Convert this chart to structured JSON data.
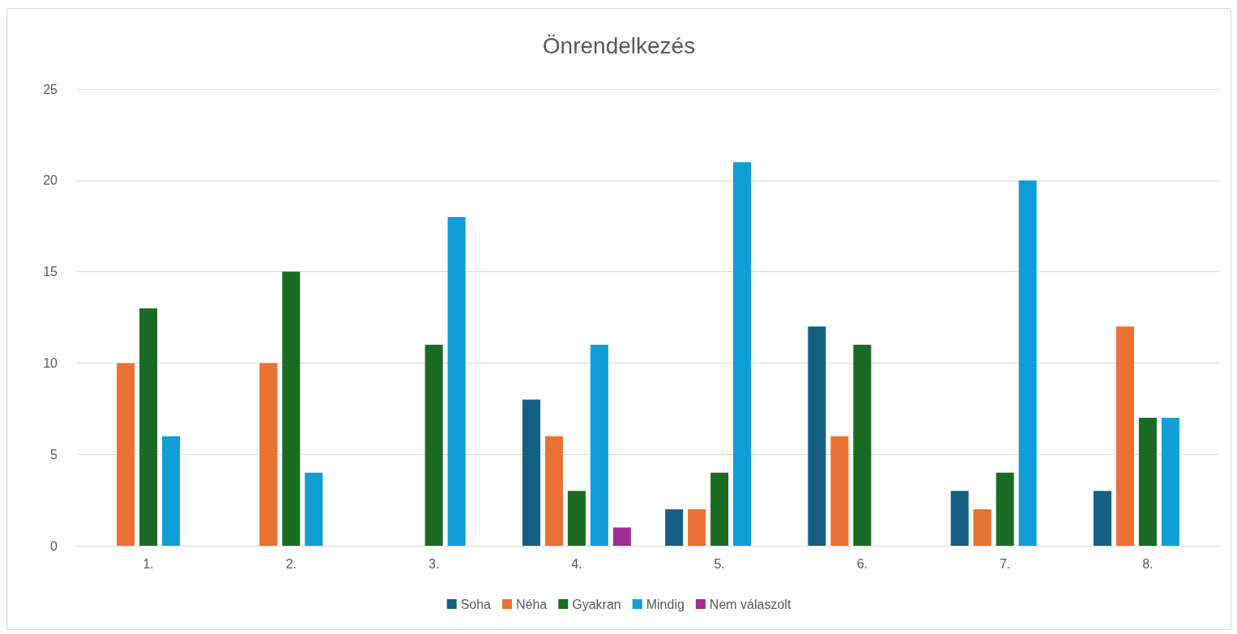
{
  "chart_data": {
    "type": "bar",
    "title": "Önrendelkezés",
    "categories": [
      "1.",
      "2.",
      "3.",
      "4.",
      "5.",
      "6.",
      "7.",
      "8."
    ],
    "series": [
      {
        "name": "Soha",
        "color": "#156082",
        "values": [
          0,
          0,
          0,
          8,
          2,
          12,
          3,
          3
        ]
      },
      {
        "name": "Néha",
        "color": "#e97132",
        "values": [
          10,
          10,
          0,
          6,
          2,
          6,
          2,
          12
        ]
      },
      {
        "name": "Gyakran",
        "color": "#196b24",
        "values": [
          13,
          15,
          11,
          3,
          4,
          11,
          4,
          7
        ]
      },
      {
        "name": "Mindig",
        "color": "#0f9ed5",
        "values": [
          6,
          4,
          18,
          11,
          21,
          0,
          20,
          7
        ]
      },
      {
        "name": "Nem válaszolt",
        "color": "#a02b93",
        "values": [
          0,
          0,
          0,
          1,
          0,
          0,
          0,
          0
        ]
      }
    ],
    "ylim": [
      0,
      25
    ],
    "yticks": [
      0,
      5,
      10,
      15,
      20,
      25
    ],
    "grid": "y",
    "legend": "bottom"
  }
}
